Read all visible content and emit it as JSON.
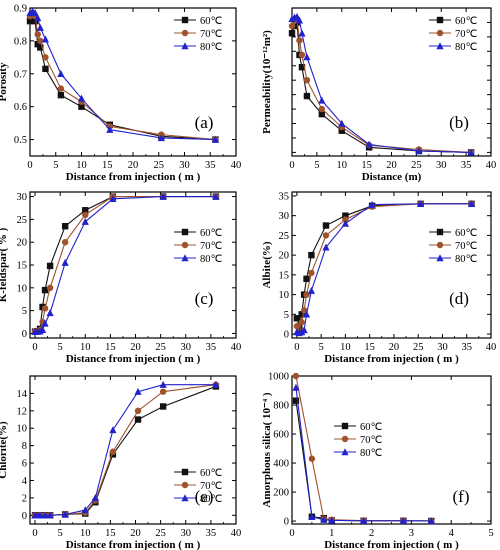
{
  "chart_data": [
    {
      "type": "line",
      "panel_label": "(a)",
      "xlabel": "Distance from injection ( m )",
      "ylabel": "Porosity",
      "xlim": [
        0,
        40
      ],
      "ylim": [
        0.45,
        0.9
      ],
      "xticks": [
        0,
        5,
        10,
        15,
        20,
        25,
        30,
        35,
        40
      ],
      "yticks": [
        0.5,
        0.6,
        0.7,
        0.8,
        0.9
      ],
      "ytick_labels": [
        "0.5",
        "0.6",
        "0.7",
        "0.8",
        "0.9"
      ],
      "legend_position": "top-right",
      "series": [
        {
          "name": "60℃",
          "x": [
            0,
            0.5,
            1,
            1.5,
            2,
            3,
            6,
            10,
            15.5,
            25.5,
            36
          ],
          "y": [
            0.86,
            0.875,
            0.86,
            0.79,
            0.78,
            0.715,
            0.635,
            0.6,
            0.545,
            0.51,
            0.5
          ]
        },
        {
          "name": "70℃",
          "x": [
            0,
            0.5,
            1,
            1.5,
            2,
            3,
            6,
            10,
            15.5,
            25.5,
            36
          ],
          "y": [
            0.875,
            0.885,
            0.875,
            0.82,
            0.8,
            0.75,
            0.655,
            0.615,
            0.54,
            0.515,
            0.5
          ]
        },
        {
          "name": "80℃",
          "x": [
            0,
            0.5,
            1,
            1.5,
            2,
            3,
            6,
            10,
            15.5,
            25.5,
            36
          ],
          "y": [
            0.885,
            0.89,
            0.885,
            0.87,
            0.84,
            0.805,
            0.7,
            0.625,
            0.53,
            0.505,
            0.5
          ]
        }
      ]
    },
    {
      "type": "line",
      "panel_label": "(b)",
      "xlabel": "Distance (m)",
      "ylabel": "Permeability(10⁻¹²m²)",
      "xlim": [
        0,
        40
      ],
      "ylim": [
        3.5,
        24
      ],
      "xticks": [
        0,
        5,
        10,
        15,
        20,
        25,
        30,
        35,
        40
      ],
      "yticks": [
        4,
        6,
        8,
        10,
        12,
        14,
        16,
        18,
        20,
        22,
        24
      ],
      "ytick_labels": [
        "",
        "",
        "",
        "",
        "",
        "",
        "",
        "",
        "",
        "",
        ""
      ],
      "legend_position": "top-right",
      "series": [
        {
          "name": "60℃",
          "x": [
            0,
            0.5,
            1,
            1.5,
            2,
            3,
            6,
            10,
            15.5,
            25.5,
            36
          ],
          "y": [
            20.5,
            21.5,
            22,
            17.5,
            15.8,
            11.8,
            9.3,
            7,
            4.7,
            4.2,
            4
          ]
        },
        {
          "name": "70℃",
          "x": [
            0,
            0.5,
            1,
            1.5,
            2,
            3,
            6,
            10,
            15.5,
            25.5,
            36
          ],
          "y": [
            21.5,
            22.2,
            22.5,
            19.5,
            17.5,
            14,
            10,
            7.5,
            5,
            4.4,
            4
          ]
        },
        {
          "name": "80℃",
          "x": [
            0,
            0.5,
            1,
            1.5,
            2,
            3,
            6,
            10,
            15.5,
            25.5,
            36
          ],
          "y": [
            22.5,
            22.7,
            22.8,
            22.3,
            20.5,
            17.2,
            11.2,
            8,
            5.1,
            4.2,
            4
          ]
        }
      ]
    },
    {
      "type": "line",
      "panel_label": "(c)",
      "xlabel": "Distance from injection ( m )",
      "ylabel": "K-feldspar( % )",
      "xlim": [
        -1,
        40
      ],
      "ylim": [
        -1,
        31
      ],
      "xticks": [
        0,
        5,
        10,
        15,
        20,
        25,
        30,
        35,
        40
      ],
      "yticks": [
        0,
        5,
        10,
        15,
        20,
        25,
        30
      ],
      "ytick_labels": [
        "0",
        "5",
        "10",
        "15",
        "20",
        "25",
        "30"
      ],
      "legend_position": "right",
      "series": [
        {
          "name": "60℃",
          "x": [
            0,
            0.5,
            1,
            1.5,
            2,
            3,
            6,
            10,
            15.5,
            25.5,
            36
          ],
          "y": [
            0.4,
            0.5,
            1,
            5.8,
            9.5,
            14.8,
            23.5,
            27,
            30,
            30,
            30
          ]
        },
        {
          "name": "70℃",
          "x": [
            0,
            0.5,
            1,
            1.5,
            2,
            3,
            6,
            10,
            15.5,
            25.5,
            36
          ],
          "y": [
            0.4,
            0.5,
            0.8,
            2.5,
            5.5,
            10,
            20,
            26,
            30,
            30,
            30
          ]
        },
        {
          "name": "80℃",
          "x": [
            0,
            0.5,
            1,
            1.5,
            2,
            3,
            6,
            10,
            15.5,
            25.5,
            36
          ],
          "y": [
            0.4,
            0.4,
            0.5,
            0.8,
            2.2,
            4.5,
            15.5,
            24.5,
            29.5,
            30,
            30
          ]
        }
      ]
    },
    {
      "type": "line",
      "panel_label": "(d)",
      "xlabel": "Distance from injection ( m )",
      "ylabel": "Albite(%)",
      "xlim": [
        -1,
        40
      ],
      "ylim": [
        -1,
        36
      ],
      "xticks": [
        0,
        5,
        10,
        15,
        20,
        25,
        30,
        35,
        40
      ],
      "yticks": [
        0,
        5,
        10,
        15,
        20,
        25,
        30,
        35
      ],
      "ytick_labels": [
        "0",
        "5",
        "10",
        "15",
        "20",
        "25",
        "30",
        "35"
      ],
      "legend_position": "right",
      "series": [
        {
          "name": "60℃",
          "x": [
            0,
            0.5,
            1,
            1.5,
            2,
            3,
            6,
            10,
            15.5,
            25.5,
            36
          ],
          "y": [
            4,
            2,
            5,
            10,
            14,
            20,
            27.5,
            30,
            32.5,
            33,
            33
          ]
        },
        {
          "name": "70℃",
          "x": [
            0,
            0.5,
            1,
            1.5,
            2,
            3,
            6,
            10,
            15.5,
            25.5,
            36
          ],
          "y": [
            2,
            0.5,
            3,
            6,
            10,
            15.5,
            25,
            29,
            32.3,
            33,
            33
          ]
        },
        {
          "name": "80℃",
          "x": [
            0,
            0.5,
            1,
            1.5,
            2,
            3,
            6,
            10,
            15.5,
            25.5,
            36
          ],
          "y": [
            0.5,
            0.3,
            0.5,
            1,
            5,
            11,
            22,
            28,
            32.8,
            33,
            33
          ]
        }
      ]
    },
    {
      "type": "line",
      "panel_label": "(e)",
      "xlabel": "Distance from injection ( m )",
      "ylabel": "Chlorite(%)",
      "xlim": [
        -1,
        40
      ],
      "ylim": [
        -1,
        16
      ],
      "xticks": [
        0,
        5,
        10,
        15,
        20,
        25,
        30,
        35,
        40
      ],
      "yticks": [
        0,
        2,
        4,
        6,
        8,
        10,
        12,
        14
      ],
      "ytick_labels": [
        "0",
        "2",
        "4",
        "6",
        "8",
        "10",
        "12",
        "14"
      ],
      "legend_position": "bottom-right",
      "series": [
        {
          "name": "60℃",
          "x": [
            0,
            0.5,
            1,
            2,
            3,
            6,
            10,
            12,
            15.5,
            20.5,
            25.5,
            36
          ],
          "y": [
            0,
            0,
            0,
            0,
            0,
            0.1,
            0.2,
            1.5,
            7,
            11,
            12.5,
            14.8
          ]
        },
        {
          "name": "70℃",
          "x": [
            0,
            0.5,
            1,
            2,
            3,
            6,
            10,
            12,
            15.5,
            20.5,
            25.5,
            36
          ],
          "y": [
            0,
            0,
            0,
            0,
            0,
            0.1,
            0.3,
            1.7,
            7.3,
            12,
            14.2,
            15
          ]
        },
        {
          "name": "80℃",
          "x": [
            0,
            0.5,
            1,
            2,
            3,
            6,
            10,
            12,
            15.5,
            20.5,
            25.5,
            36
          ],
          "y": [
            0,
            0,
            0,
            0,
            0,
            0.1,
            0.6,
            2,
            9.8,
            14.2,
            15,
            15
          ]
        }
      ]
    },
    {
      "type": "line",
      "panel_label": "(f)",
      "xlabel": "Distance from injection ( m )",
      "ylabel": "Amorphous silica( 10⁻⁴ )",
      "xlim": [
        0,
        5
      ],
      "ylim": [
        -20,
        1000
      ],
      "xticks": [
        0,
        1,
        2,
        3,
        4,
        5
      ],
      "yticks": [
        0,
        200,
        400,
        600,
        800,
        1000
      ],
      "ytick_labels": [
        "0",
        "200",
        "400",
        "600",
        "800",
        "1000"
      ],
      "legend_position": "center-left",
      "series": [
        {
          "name": "60℃",
          "x": [
            0.1,
            0.5,
            0.8,
            1,
            1.8,
            2.8,
            3.5
          ],
          "y": [
            830,
            30,
            20,
            5,
            2,
            2,
            1
          ]
        },
        {
          "name": "70℃",
          "x": [
            0.1,
            0.5,
            0.8,
            1,
            1.8,
            2.8,
            3.5
          ],
          "y": [
            1000,
            430,
            15,
            10,
            3,
            2,
            1
          ]
        },
        {
          "name": "80℃",
          "x": [
            0.1,
            0.5,
            0.8,
            1,
            1.8,
            2.8,
            3.5
          ],
          "y": [
            920,
            30,
            10,
            5,
            2,
            2,
            1
          ]
        }
      ]
    }
  ],
  "series_colors": [
    "#111111",
    "#a0522d",
    "#2222cc"
  ],
  "series_markers": [
    "square",
    "circle",
    "triangle"
  ]
}
